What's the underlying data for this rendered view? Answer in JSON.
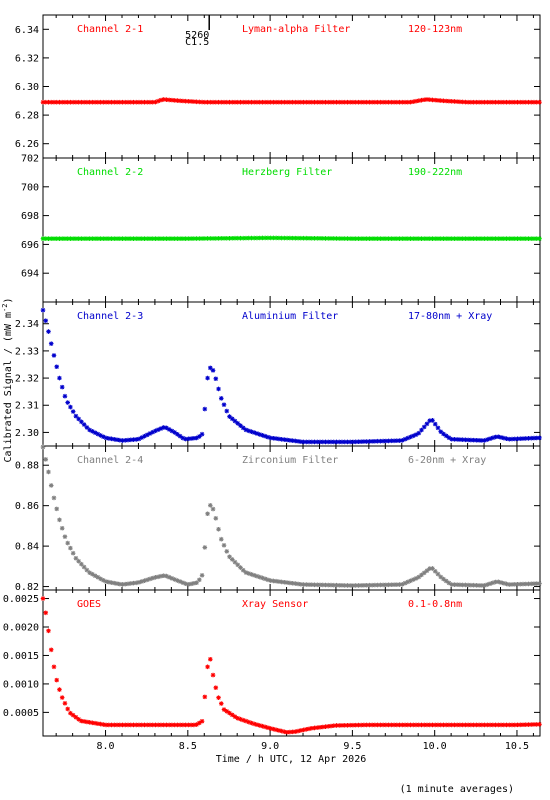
{
  "chart_data": {
    "type": "scatter",
    "xlabel": "Time / h UTC, 12 Apr 2026",
    "ylabel": "Calibrated Signal / (mW m",
    "ylabel_sup": "-2",
    "ylabel_close": ")",
    "footnote": "(1 minute averages)",
    "xlim": [
      7.62,
      10.64
    ],
    "xticks": [
      "8.0",
      "8.5",
      "9.0",
      "9.5",
      "10.0",
      "10.5"
    ],
    "marker": {
      "x": 8.63,
      "top_label": "5260",
      "bottom_label": "C1.5"
    },
    "panels": [
      {
        "labels": [
          "Channel 2-1",
          "Lyman-alpha Filter",
          "120-123nm"
        ],
        "color": "#ff0000",
        "ylim": [
          6.25,
          6.35
        ],
        "yticks": [
          "6.26",
          "6.28",
          "6.30",
          "6.32",
          "6.34"
        ],
        "baseline": 6.289,
        "points": [
          [
            7.62,
            6.289
          ],
          [
            8.0,
            6.289
          ],
          [
            8.3,
            6.289
          ],
          [
            8.35,
            6.291
          ],
          [
            8.45,
            6.29
          ],
          [
            8.6,
            6.289
          ],
          [
            9.0,
            6.289
          ],
          [
            9.5,
            6.289
          ],
          [
            9.85,
            6.289
          ],
          [
            9.95,
            6.291
          ],
          [
            10.05,
            6.29
          ],
          [
            10.2,
            6.289
          ],
          [
            10.64,
            6.289
          ]
        ]
      },
      {
        "labels": [
          "Channel 2-2",
          "Herzberg Filter",
          "190-222nm"
        ],
        "color": "#00dd00",
        "ylim": [
          692,
          702
        ],
        "yticks": [
          "694",
          "696",
          "698",
          "700",
          "702"
        ],
        "baseline": 696.4,
        "points": [
          [
            7.62,
            696.4
          ],
          [
            8.5,
            696.4
          ],
          [
            9.0,
            696.45
          ],
          [
            9.5,
            696.4
          ],
          [
            10.0,
            696.4
          ],
          [
            10.64,
            696.4
          ]
        ]
      },
      {
        "labels": [
          "Channel 2-3",
          "Aluminium Filter",
          "17-80nm + Xray"
        ],
        "color": "#0000cc",
        "ylim": [
          2.295,
          2.348
        ],
        "yticks": [
          "2.30",
          "2.31",
          "2.32",
          "2.33",
          "2.34"
        ],
        "points": [
          [
            7.62,
            2.345
          ],
          [
            7.65,
            2.338
          ],
          [
            7.68,
            2.33
          ],
          [
            7.72,
            2.32
          ],
          [
            7.76,
            2.312
          ],
          [
            7.82,
            2.306
          ],
          [
            7.9,
            2.301
          ],
          [
            8.0,
            2.298
          ],
          [
            8.1,
            2.297
          ],
          [
            8.2,
            2.2975
          ],
          [
            8.3,
            2.3005
          ],
          [
            8.36,
            2.302
          ],
          [
            8.42,
            2.3
          ],
          [
            8.48,
            2.2975
          ],
          [
            8.56,
            2.298
          ],
          [
            8.59,
            2.2995
          ],
          [
            8.62,
            2.32
          ],
          [
            8.64,
            2.3245
          ],
          [
            8.66,
            2.322
          ],
          [
            8.7,
            2.313
          ],
          [
            8.75,
            2.306
          ],
          [
            8.85,
            2.301
          ],
          [
            9.0,
            2.298
          ],
          [
            9.2,
            2.2965
          ],
          [
            9.5,
            2.2965
          ],
          [
            9.8,
            2.297
          ],
          [
            9.9,
            2.2995
          ],
          [
            9.98,
            2.305
          ],
          [
            10.04,
            2.3
          ],
          [
            10.1,
            2.2975
          ],
          [
            10.3,
            2.297
          ],
          [
            10.38,
            2.2985
          ],
          [
            10.45,
            2.2975
          ],
          [
            10.64,
            2.298
          ]
        ]
      },
      {
        "labels": [
          "Channel 2-4",
          "Zirconium Filter",
          "6-20nm + Xray"
        ],
        "color": "#808080",
        "ylim": [
          0.8183,
          0.8895
        ],
        "yticks": [
          "0.82",
          "0.84",
          "0.86",
          "0.88"
        ],
        "points": [
          [
            7.62,
            0.889
          ],
          [
            7.65,
            0.878
          ],
          [
            7.68,
            0.866
          ],
          [
            7.72,
            0.853
          ],
          [
            7.76,
            0.843
          ],
          [
            7.82,
            0.834
          ],
          [
            7.9,
            0.827
          ],
          [
            8.0,
            0.8225
          ],
          [
            8.1,
            0.821
          ],
          [
            8.2,
            0.822
          ],
          [
            8.3,
            0.8245
          ],
          [
            8.36,
            0.8255
          ],
          [
            8.42,
            0.8235
          ],
          [
            8.5,
            0.821
          ],
          [
            8.56,
            0.822
          ],
          [
            8.59,
            0.826
          ],
          [
            8.62,
            0.856
          ],
          [
            8.64,
            0.861
          ],
          [
            8.66,
            0.857
          ],
          [
            8.7,
            0.844
          ],
          [
            8.75,
            0.835
          ],
          [
            8.85,
            0.827
          ],
          [
            9.0,
            0.823
          ],
          [
            9.2,
            0.821
          ],
          [
            9.5,
            0.8205
          ],
          [
            9.8,
            0.821
          ],
          [
            9.9,
            0.8245
          ],
          [
            9.98,
            0.8295
          ],
          [
            10.04,
            0.8245
          ],
          [
            10.1,
            0.821
          ],
          [
            10.3,
            0.8205
          ],
          [
            10.38,
            0.8225
          ],
          [
            10.45,
            0.821
          ],
          [
            10.64,
            0.8215
          ]
        ]
      },
      {
        "labels": [
          "GOES",
          "Xray Sensor",
          "0.1-0.8nm"
        ],
        "color": "#ff0000",
        "ylim": [
          8.5e-05,
          0.00265
        ],
        "yticks": [
          "0.0005",
          "0.0010",
          "0.0015",
          "0.0020",
          "0.0025"
        ],
        "points": [
          [
            7.62,
            0.0025
          ],
          [
            7.64,
            0.0022
          ],
          [
            7.66,
            0.0018
          ],
          [
            7.68,
            0.0014
          ],
          [
            7.7,
            0.0011
          ],
          [
            7.73,
            0.0008
          ],
          [
            7.78,
            0.0005
          ],
          [
            7.85,
            0.00035
          ],
          [
            8.0,
            0.00028
          ],
          [
            8.3,
            0.00028
          ],
          [
            8.55,
            0.00028
          ],
          [
            8.59,
            0.00035
          ],
          [
            8.62,
            0.0013
          ],
          [
            8.63,
            0.00155
          ],
          [
            8.65,
            0.0012
          ],
          [
            8.68,
            0.0008
          ],
          [
            8.72,
            0.00055
          ],
          [
            8.8,
            0.0004
          ],
          [
            8.9,
            0.0003
          ],
          [
            9.0,
            0.00022
          ],
          [
            9.1,
            0.00015
          ],
          [
            9.15,
            0.00016
          ],
          [
            9.25,
            0.00022
          ],
          [
            9.4,
            0.00027
          ],
          [
            9.6,
            0.00028
          ],
          [
            10.0,
            0.00028
          ],
          [
            10.5,
            0.00028
          ],
          [
            10.64,
            0.00029
          ]
        ]
      }
    ]
  }
}
